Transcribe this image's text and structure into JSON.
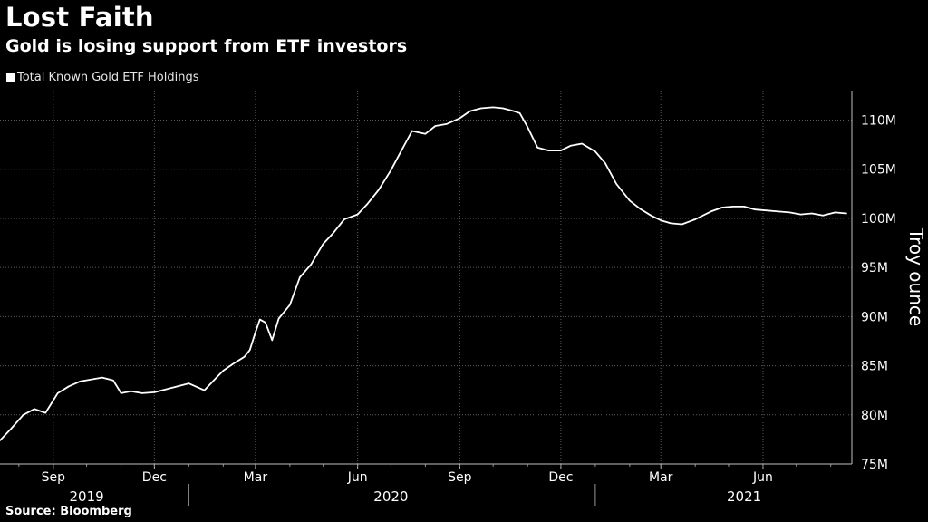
{
  "title": "Lost Faith",
  "subtitle": "Gold is losing support from ETF investors",
  "source": "Source: Bloomberg",
  "colors": {
    "background": "#000000",
    "line": "#ffffff",
    "grid": "#5a5a5a",
    "text": "#ffffff"
  },
  "chart_data": {
    "type": "line",
    "title": "Lost Faith",
    "subtitle": "Gold is losing support from ETF investors",
    "ylabel": "Troy ounce",
    "ylim": [
      75,
      113
    ],
    "y_unit": "M",
    "y_ticks": [
      75,
      80,
      85,
      90,
      95,
      100,
      105,
      110
    ],
    "y_tick_labels": [
      "75M",
      "80M",
      "85M",
      "90M",
      "95M",
      "100M",
      "105M",
      "110M"
    ],
    "x_range": [
      "2019-07-15",
      "2021-08-20"
    ],
    "x_ticks": [
      {
        "date": "2019-09-01",
        "label": "Sep"
      },
      {
        "date": "2019-12-01",
        "label": "Dec"
      },
      {
        "date": "2020-03-01",
        "label": "Mar"
      },
      {
        "date": "2020-06-01",
        "label": "Jun"
      },
      {
        "date": "2020-09-01",
        "label": "Sep"
      },
      {
        "date": "2020-12-01",
        "label": "Dec"
      },
      {
        "date": "2021-03-01",
        "label": "Mar"
      },
      {
        "date": "2021-06-01",
        "label": "Jun"
      }
    ],
    "years": [
      {
        "label": "2019",
        "center": "2019-10-01"
      },
      {
        "label": "2020",
        "center": "2020-07-01"
      },
      {
        "label": "2021",
        "center": "2021-05-15"
      }
    ],
    "year_dividers": [
      "2020-01-01",
      "2021-01-01"
    ],
    "grid": true,
    "legend": {
      "position": "top-left",
      "entries": [
        "Total Known Gold ETF Holdings"
      ]
    },
    "series": [
      {
        "name": "Total Known Gold ETF Holdings",
        "x": [
          "2019-07-15",
          "2019-07-25",
          "2019-08-05",
          "2019-08-15",
          "2019-08-25",
          "2019-09-05",
          "2019-09-15",
          "2019-09-25",
          "2019-10-05",
          "2019-10-15",
          "2019-10-25",
          "2019-11-01",
          "2019-11-10",
          "2019-11-20",
          "2019-12-01",
          "2019-12-15",
          "2020-01-01",
          "2020-01-15",
          "2020-01-25",
          "2020-02-01",
          "2020-02-10",
          "2020-02-20",
          "2020-02-25",
          "2020-03-01",
          "2020-03-05",
          "2020-03-10",
          "2020-03-16",
          "2020-03-22",
          "2020-04-01",
          "2020-04-10",
          "2020-04-20",
          "2020-05-01",
          "2020-05-10",
          "2020-05-20",
          "2020-06-01",
          "2020-06-10",
          "2020-06-20",
          "2020-07-01",
          "2020-07-10",
          "2020-07-20",
          "2020-08-01",
          "2020-08-10",
          "2020-08-20",
          "2020-09-01",
          "2020-09-10",
          "2020-09-20",
          "2020-10-01",
          "2020-10-10",
          "2020-10-20",
          "2020-10-25",
          "2020-11-01",
          "2020-11-10",
          "2020-11-20",
          "2020-12-01",
          "2020-12-10",
          "2020-12-20",
          "2021-01-01",
          "2021-01-10",
          "2021-01-20",
          "2021-02-01",
          "2021-02-10",
          "2021-02-20",
          "2021-03-01",
          "2021-03-10",
          "2021-03-20",
          "2021-04-01",
          "2021-04-15",
          "2021-04-25",
          "2021-05-05",
          "2021-05-15",
          "2021-05-25",
          "2021-06-05",
          "2021-06-15",
          "2021-06-25",
          "2021-07-05",
          "2021-07-15",
          "2021-07-25",
          "2021-08-05",
          "2021-08-15"
        ],
        "y": [
          77.4,
          78.6,
          80.0,
          80.6,
          80.2,
          82.2,
          82.9,
          83.4,
          83.6,
          83.8,
          83.5,
          82.2,
          82.4,
          82.2,
          82.3,
          82.7,
          83.2,
          82.5,
          83.7,
          84.5,
          85.2,
          85.9,
          86.6,
          88.4,
          89.7,
          89.4,
          87.6,
          89.8,
          91.2,
          94.0,
          95.3,
          97.4,
          98.5,
          99.9,
          100.4,
          101.5,
          102.9,
          104.9,
          106.8,
          108.9,
          108.6,
          109.4,
          109.6,
          110.2,
          110.9,
          111.2,
          111.3,
          111.2,
          110.9,
          110.7,
          109.3,
          107.2,
          106.9,
          106.9,
          107.4,
          107.6,
          106.8,
          105.6,
          103.5,
          101.8,
          101.0,
          100.3,
          99.8,
          99.5,
          99.4,
          99.9,
          100.7,
          101.1,
          101.2,
          101.2,
          100.9,
          100.8,
          100.7,
          100.6,
          100.4,
          100.5,
          100.3,
          100.6,
          100.5
        ]
      }
    ]
  }
}
